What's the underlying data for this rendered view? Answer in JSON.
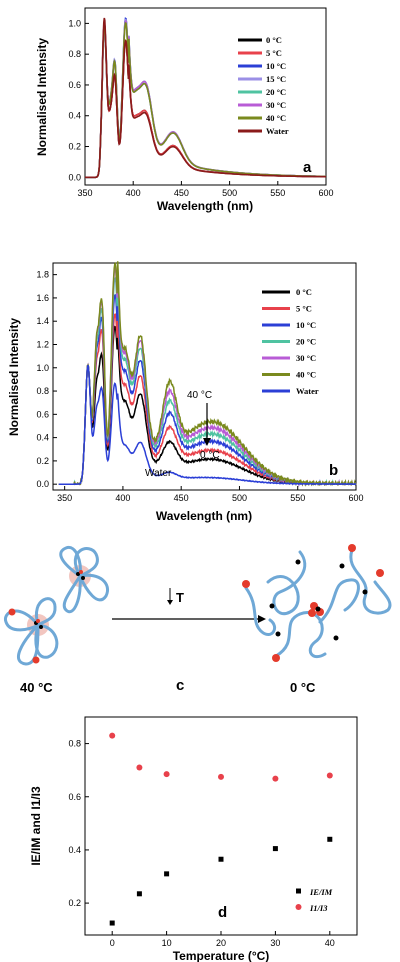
{
  "chart_data": [
    {
      "panel": "a",
      "type": "line",
      "xlabel": "Wavelength (nm)",
      "ylabel": "Normalised Intensity",
      "xlim": [
        350,
        600
      ],
      "ylim": [
        -0.05,
        1.1
      ],
      "xticks": [
        350,
        400,
        450,
        500,
        550,
        600
      ],
      "yticks": [
        0.0,
        0.2,
        0.4,
        0.6,
        0.8,
        1.0
      ],
      "legend_position": "top-right",
      "series": [
        {
          "name": "0 °C",
          "color": "#000000",
          "peaks": [
            0.97,
            0.62,
            0.85,
            0.3
          ]
        },
        {
          "name": "5 °C",
          "color": "#e8414b",
          "peaks": [
            0.97,
            0.62,
            0.85,
            0.3
          ]
        },
        {
          "name": "10 °C",
          "color": "#2b3fd6",
          "peaks": [
            0.98,
            0.71,
            0.98,
            0.42
          ]
        },
        {
          "name": "15 °C",
          "color": "#9b8fe6",
          "peaks": [
            0.98,
            0.71,
            0.97,
            0.43
          ]
        },
        {
          "name": "20 °C",
          "color": "#4fc3a1",
          "peaks": [
            0.98,
            0.7,
            0.96,
            0.43
          ]
        },
        {
          "name": "30 °C",
          "color": "#b85cd6",
          "peaks": [
            0.98,
            0.7,
            0.96,
            0.43
          ]
        },
        {
          "name": "40 °C",
          "color": "#7a8a1e",
          "peaks": [
            0.98,
            0.7,
            0.95,
            0.42
          ]
        },
        {
          "name": "Water",
          "color": "#8b1a1a",
          "peaks": [
            1.02,
            0.62,
            0.85,
            0.29
          ]
        }
      ]
    },
    {
      "panel": "b",
      "type": "line",
      "xlabel": "Wavelength (nm)",
      "ylabel": "Normalised Intensity",
      "xlim": [
        340,
        600
      ],
      "ylim": [
        -0.05,
        1.9
      ],
      "xticks": [
        350,
        400,
        450,
        500,
        550,
        600
      ],
      "yticks": [
        0.0,
        0.2,
        0.4,
        0.6,
        0.8,
        1.0,
        1.2,
        1.4,
        1.6,
        1.8
      ],
      "legend_position": "right",
      "annotations": [
        "40 °C",
        "0 °C",
        "Water"
      ],
      "series": [
        {
          "name": "0 °C",
          "color": "#000000",
          "peaks": [
            1.02,
            1.05,
            1.32,
            0.6,
            0.18
          ]
        },
        {
          "name": "5 °C",
          "color": "#e8414b",
          "peaks": [
            1.02,
            1.25,
            1.42,
            0.72,
            0.25
          ]
        },
        {
          "name": "10 °C",
          "color": "#2b3fd6",
          "peaks": [
            1.02,
            1.35,
            1.58,
            0.82,
            0.32
          ]
        },
        {
          "name": "20 °C",
          "color": "#4fc3a1",
          "peaks": [
            1.02,
            1.42,
            1.72,
            0.9,
            0.38
          ]
        },
        {
          "name": "30 °C",
          "color": "#b85cd6",
          "peaks": [
            1.02,
            1.48,
            1.8,
            0.95,
            0.43
          ]
        },
        {
          "name": "40 °C",
          "color": "#7a8a1e",
          "peaks": [
            1.02,
            1.5,
            1.84,
            0.98,
            0.48
          ]
        },
        {
          "name": "Water",
          "color": "#2b3fd6",
          "peaks": [
            1.02,
            0.78,
            0.85,
            0.28,
            0.04
          ]
        }
      ]
    },
    {
      "panel": "d",
      "type": "scatter",
      "xlabel": "Temperature (°C)",
      "ylabel": "IE/IM and I1/I3",
      "xlim": [
        -5,
        45
      ],
      "ylim": [
        0.08,
        0.9
      ],
      "xticks": [
        0,
        10,
        20,
        30,
        40
      ],
      "yticks": [
        0.2,
        0.4,
        0.6,
        0.8
      ],
      "legend_position": "bottom-right",
      "x": [
        0,
        5,
        10,
        20,
        30,
        40
      ],
      "series": [
        {
          "name": "IE/IM",
          "color": "#000000",
          "marker": "square",
          "values": [
            0.125,
            0.235,
            0.31,
            0.365,
            0.405,
            0.44
          ]
        },
        {
          "name": "I1/I3",
          "color": "#e8414b",
          "marker": "circle",
          "values": [
            0.83,
            0.71,
            0.685,
            0.675,
            0.668,
            0.68
          ]
        }
      ]
    }
  ],
  "labels": {
    "panel_a": "a",
    "panel_b": "b",
    "panel_c": "c",
    "panel_d": "d",
    "temp_high": "40 °C",
    "temp_low": "0 °C",
    "arrow_T": "T"
  },
  "colors": {
    "coil": "#6fa8d6",
    "halo": "#f2c6c0",
    "dot_red": "#e43b2c",
    "dot_black": "#000000"
  }
}
